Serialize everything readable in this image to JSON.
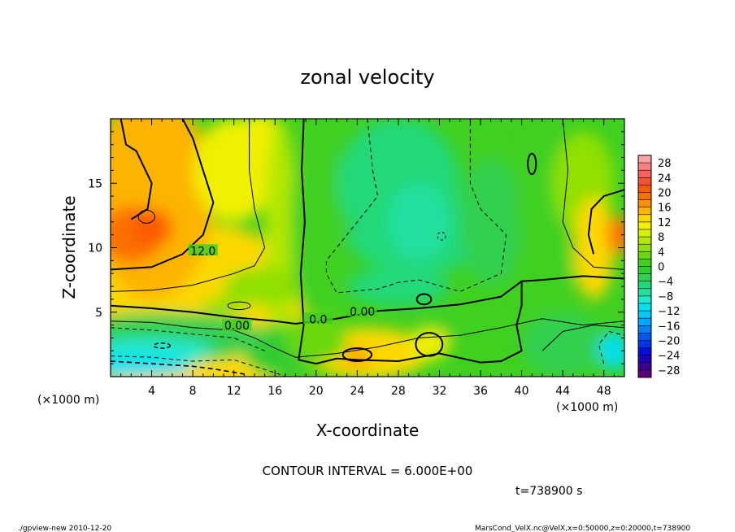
{
  "chart_data": {
    "type": "heatmap",
    "title": "zonal velocity",
    "xlabel": "X-coordinate",
    "ylabel": "Z-coordinate",
    "x_unit_left": "(×1000 m)",
    "x_unit_right": "(×1000 m)",
    "xlim": [
      0,
      50
    ],
    "ylim": [
      0,
      20
    ],
    "x_ticks": [
      4,
      8,
      12,
      16,
      20,
      24,
      28,
      32,
      36,
      40,
      44,
      48
    ],
    "x_tick_labels": [
      "4",
      "8",
      "12",
      "16",
      "20",
      "24",
      "28",
      "32",
      "36",
      "40",
      "44",
      "48"
    ],
    "y_ticks": [
      5,
      10,
      15
    ],
    "y_tick_labels": [
      "5",
      "10",
      "15"
    ],
    "colorbar": {
      "levels": [
        -30,
        -28,
        -26,
        -24,
        -22,
        -20,
        -18,
        -16,
        -14,
        -12,
        -10,
        -8,
        -6,
        -4,
        -2,
        0,
        2,
        4,
        6,
        8,
        10,
        12,
        14,
        16,
        18,
        20,
        22,
        24,
        26,
        28,
        30
      ],
      "labels": [
        "28",
        "24",
        "20",
        "16",
        "12",
        "8",
        "4",
        "0",
        "−4",
        "−8",
        "−12",
        "−16",
        "−20",
        "−24",
        "−28"
      ],
      "label_values": [
        28,
        24,
        20,
        16,
        12,
        8,
        4,
        0,
        -4,
        -8,
        -12,
        -16,
        -20,
        -24,
        -28
      ],
      "colors": [
        "#5c007c",
        "#3c0090",
        "#2000b4",
        "#0010d8",
        "#0034ec",
        "#0058f4",
        "#0080f8",
        "#00a8fc",
        "#00c8f8",
        "#00e0f0",
        "#20e8d0",
        "#20e0a0",
        "#20d878",
        "#30d050",
        "#30cc30",
        "#40d020",
        "#68d810",
        "#90e000",
        "#b4e800",
        "#d4f000",
        "#f0f000",
        "#fcd800",
        "#fcb400",
        "#fc9000",
        "#fc7000",
        "#fc5c00",
        "#fc5030",
        "#fc6060",
        "#fc8080",
        "#fca0a0"
      ]
    },
    "contour_labels": [
      {
        "text": "12.0",
        "x": 9.0,
        "y": 9.7
      },
      {
        "text": "0.00",
        "x": 12.3,
        "y": 3.9
      },
      {
        "text": "0.00",
        "x": 24.5,
        "y": 5.0
      },
      {
        "text": "0.0",
        "x": 20.2,
        "y": 4.4
      }
    ]
  },
  "annotations": {
    "contour_interval": "CONTOUR INTERVAL = 6.000E+00",
    "time": "t=738900  s",
    "footer_left": "./gpview-new  2010-12-20",
    "footer_right": "MarsCond_VelX.nc@VelX,x=0:50000,z=0:20000,t=738900"
  }
}
